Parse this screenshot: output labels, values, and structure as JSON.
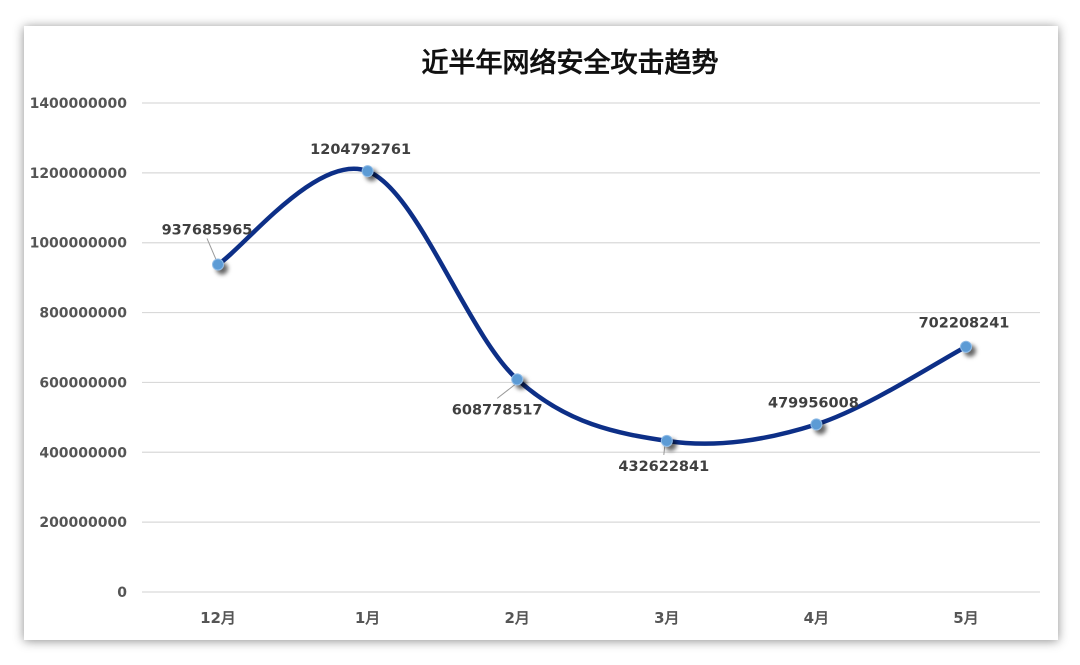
{
  "chart_data": {
    "type": "line",
    "title": "近半年网络安全攻击趋势",
    "categories": [
      "12月",
      "1月",
      "2月",
      "3月",
      "4月",
      "5月"
    ],
    "series": [
      {
        "values": [
          937685965,
          1204792761,
          608778517,
          432622841,
          479956008,
          702208241
        ],
        "labels": [
          "937685965",
          "1204792761",
          "608778517",
          "432622841",
          "479956008",
          "702208241"
        ]
      }
    ],
    "ylim": [
      0,
      1400000000
    ],
    "yticks": [
      "0",
      "200000000",
      "400000000",
      "600000000",
      "800000000",
      "1000000000",
      "1200000000",
      "1400000000"
    ],
    "smooth": true,
    "grid": true,
    "legend": "none",
    "line_color": "#0d2f87",
    "marker_color": "#5b9bd5"
  }
}
